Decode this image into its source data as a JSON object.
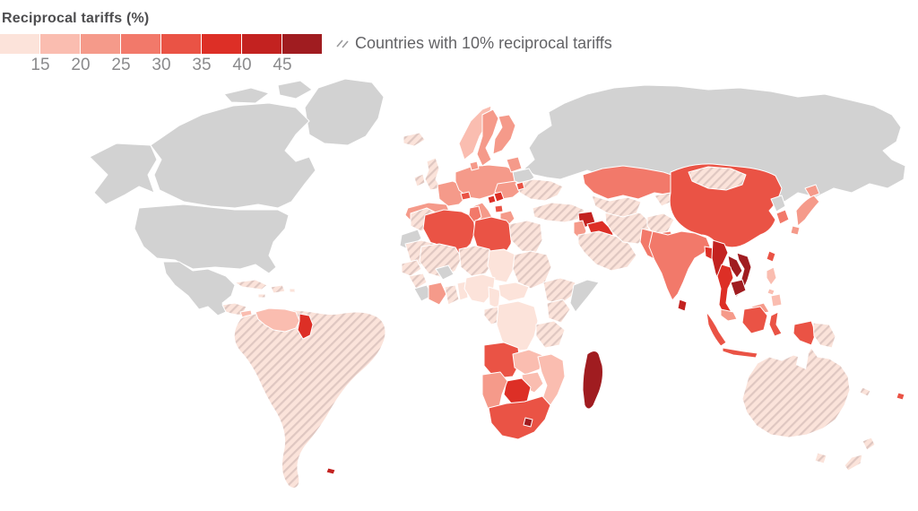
{
  "legend": {
    "title": "Reciprocal tariffs (%)",
    "ticks": [
      "15",
      "20",
      "25",
      "30",
      "35",
      "40",
      "45"
    ],
    "bins": [
      {
        "range": "10-15",
        "color": "#fce3da"
      },
      {
        "range": "15-20",
        "color": "#fabdb0"
      },
      {
        "range": "20-25",
        "color": "#f59a8a"
      },
      {
        "range": "25-30",
        "color": "#f2796a"
      },
      {
        "range": "30-35",
        "color": "#ea5345"
      },
      {
        "range": "35-40",
        "color": "#dd2f26"
      },
      {
        "range": "40-45",
        "color": "#c32220"
      },
      {
        "range": "45+",
        "color": "#a01c20"
      }
    ],
    "hatch_label": "Countries with 10% reciprocal tariffs"
  },
  "map": {
    "no_data_color": "#d2d2d2",
    "ocean_color": "#ffffff",
    "border_color": "#ffffff",
    "hatch": {
      "base": "#fbe3da",
      "stripe": "#dfc7c1"
    },
    "countries": {
      "greenland": "no-data",
      "canada": "no-data",
      "canada-arctic-islands": "no-data",
      "alaska": "no-data",
      "united-states": "no-data",
      "mexico": "no-data",
      "russia": "no-data",
      "belarus": "no-data",
      "north-korea": "no-data",
      "somalia": "no-data",
      "western-sahara": "no-data",
      "burkina-faso": "no-data",
      "sierra-leone-liberia": "no-data",
      "cuba": "hatched-10",
      "hispaniola": "hatched-10",
      "jamaica": "hatched-10",
      "puerto-rico": "hatched-10",
      "central-america": "hatched-10",
      "costa-rica-panama": "hatched-10",
      "south-america": "hatched-10",
      "iceland": "hatched-10",
      "united-kingdom": "hatched-10",
      "ireland": "hatched-10",
      "ukraine": "hatched-10",
      "turkey": "hatched-10",
      "morocco": "hatched-10",
      "egypt": "hatched-10",
      "saudi-arabia": "hatched-10",
      "iran": "hatched-10",
      "afghanistan": "hatched-10",
      "central-asia": "hatched-10",
      "kyrgyzstan-tajikistan": "hatched-10",
      "mongolia": "hatched-10",
      "mauritania": "hatched-10",
      "mali": "hatched-10",
      "niger": "hatched-10",
      "sudan": "hatched-10",
      "ethiopia": "hatched-10",
      "kenya": "hatched-10",
      "tanzania": "hatched-10",
      "senegal": "hatched-10",
      "guinea": "hatched-10",
      "ghana": "hatched-10",
      "gabon-congo": "hatched-10",
      "australia": "hatched-10",
      "tasmania": "hatched-10",
      "new-zealand-north": "hatched-10",
      "new-zealand-south": "hatched-10",
      "papua-new-guinea": "hatched-10",
      "new-caledonia": "hatched-10",
      "chad": "10-15",
      "nigeria": "10-15",
      "togo-benin": "10-15",
      "cameroon": "10-15",
      "central-african-republic": "10-15",
      "dr-congo": "10-15",
      "venezuela": "15-20",
      "nicaragua": "15-20",
      "norway": "15-20",
      "philippines-luzon": "15-20",
      "philippines-visayas": "15-20",
      "philippines-mindanao": "15-20",
      "zambia": "15-20",
      "zimbabwe": "15-20",
      "mozambique": "15-20",
      "european-union": "20-25",
      "japan-hokkaido": "20-25",
      "japan-honshu": "20-25",
      "japan-kyushu": "20-25",
      "malaysia": "20-25",
      "malaysia-borneo": "20-25",
      "ivory-coast": "20-25",
      "namibia": "20-25",
      "israel-jordan": "20-25",
      "india": "25-30",
      "kazakhstan": "25-30",
      "pakistan": "25-30",
      "south-korea": "25-30",
      "tunisia": "25-30",
      "china": "30-35",
      "taiwan": "30-35",
      "indonesia-sumatra": "30-35",
      "indonesia-java": "30-35",
      "indonesia-borneo": "30-35",
      "indonesia-sulawesi": "30-35",
      "indonesia-west-papua": "30-35",
      "algeria": "30-35",
      "libya": "30-35",
      "angola": "30-35",
      "south-africa": "30-35",
      "fiji": "30-35",
      "switzerland": "30-35",
      "moldova": "30-35",
      "north-macedonia": "30-35",
      "thailand": "35-40",
      "bangladesh": "35-40",
      "guyana": "35-40",
      "botswana": "35-40",
      "serbia": "35-40",
      "bosnia": "35-40",
      "iraq": "35-40",
      "myanmar": "40-45",
      "sri-lanka": "40-45",
      "syria": "40-45",
      "falkland-islands": "40-45",
      "vietnam": "45+",
      "laos": "45+",
      "cambodia": "45+",
      "madagascar": "45+",
      "lesotho": "45+"
    }
  },
  "chart_data": {
    "type": "choropleth",
    "title": "Reciprocal tariffs (%)",
    "bin_edges": [
      10,
      15,
      20,
      25,
      30,
      35,
      40,
      45,
      50
    ],
    "special_category": "Countries with 10% reciprocal tariffs (hatched)",
    "no_data_examples": [
      "United States",
      "Canada",
      "Mexico",
      "Russia",
      "Greenland",
      "Belarus",
      "North Korea",
      "Somalia"
    ]
  }
}
